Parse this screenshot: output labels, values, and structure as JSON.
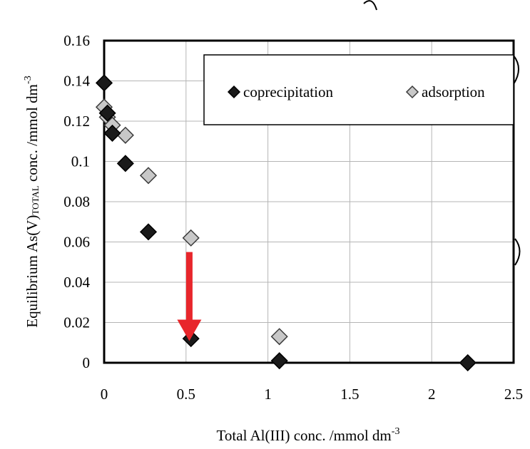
{
  "chart_data": {
    "type": "scatter",
    "title": "",
    "xlabel": "Total Al(III) conc. /mmol dm",
    "xlabel_sup": "-3",
    "ylabel_parts": [
      "Equilibrium As(V)",
      "TOTAL",
      " conc. /mmol dm",
      "-3"
    ],
    "xlim": [
      0,
      2.5
    ],
    "ylim": [
      0,
      0.16
    ],
    "xticks": [
      "0",
      "0.5",
      "1",
      "1.5",
      "2",
      "2.5"
    ],
    "yticks": [
      "0",
      "0.02",
      "0.04",
      "0.06",
      "0.08",
      "0.1",
      "0.12",
      "0.14",
      "0.16"
    ],
    "grid": true,
    "legend_position": "top-right",
    "series": [
      {
        "name": "coprecipitation",
        "color": "#1a1a1a",
        "marker": "diamond",
        "points": [
          {
            "x": 0,
            "y": 0.139
          },
          {
            "x": 0.02,
            "y": 0.124
          },
          {
            "x": 0.05,
            "y": 0.114
          },
          {
            "x": 0.13,
            "y": 0.099
          },
          {
            "x": 0.27,
            "y": 0.065
          },
          {
            "x": 0.53,
            "y": 0.012
          },
          {
            "x": 1.07,
            "y": 0.001
          },
          {
            "x": 2.22,
            "y": 0.0
          }
        ]
      },
      {
        "name": "adsorption",
        "color": "#c8c8c8",
        "marker": "diamond",
        "points": [
          {
            "x": 0,
            "y": 0.127
          },
          {
            "x": 0.02,
            "y": 0.122
          },
          {
            "x": 0.05,
            "y": 0.118
          },
          {
            "x": 0.13,
            "y": 0.113
          },
          {
            "x": 0.27,
            "y": 0.093
          },
          {
            "x": 0.53,
            "y": 0.062
          },
          {
            "x": 1.07,
            "y": 0.013
          },
          {
            "x": 2.22,
            "y": 0.0
          }
        ]
      }
    ],
    "annotation": {
      "type": "arrow",
      "color": "#e8262b",
      "x": 0.52,
      "y_from": 0.055,
      "y_to": 0.02
    }
  }
}
